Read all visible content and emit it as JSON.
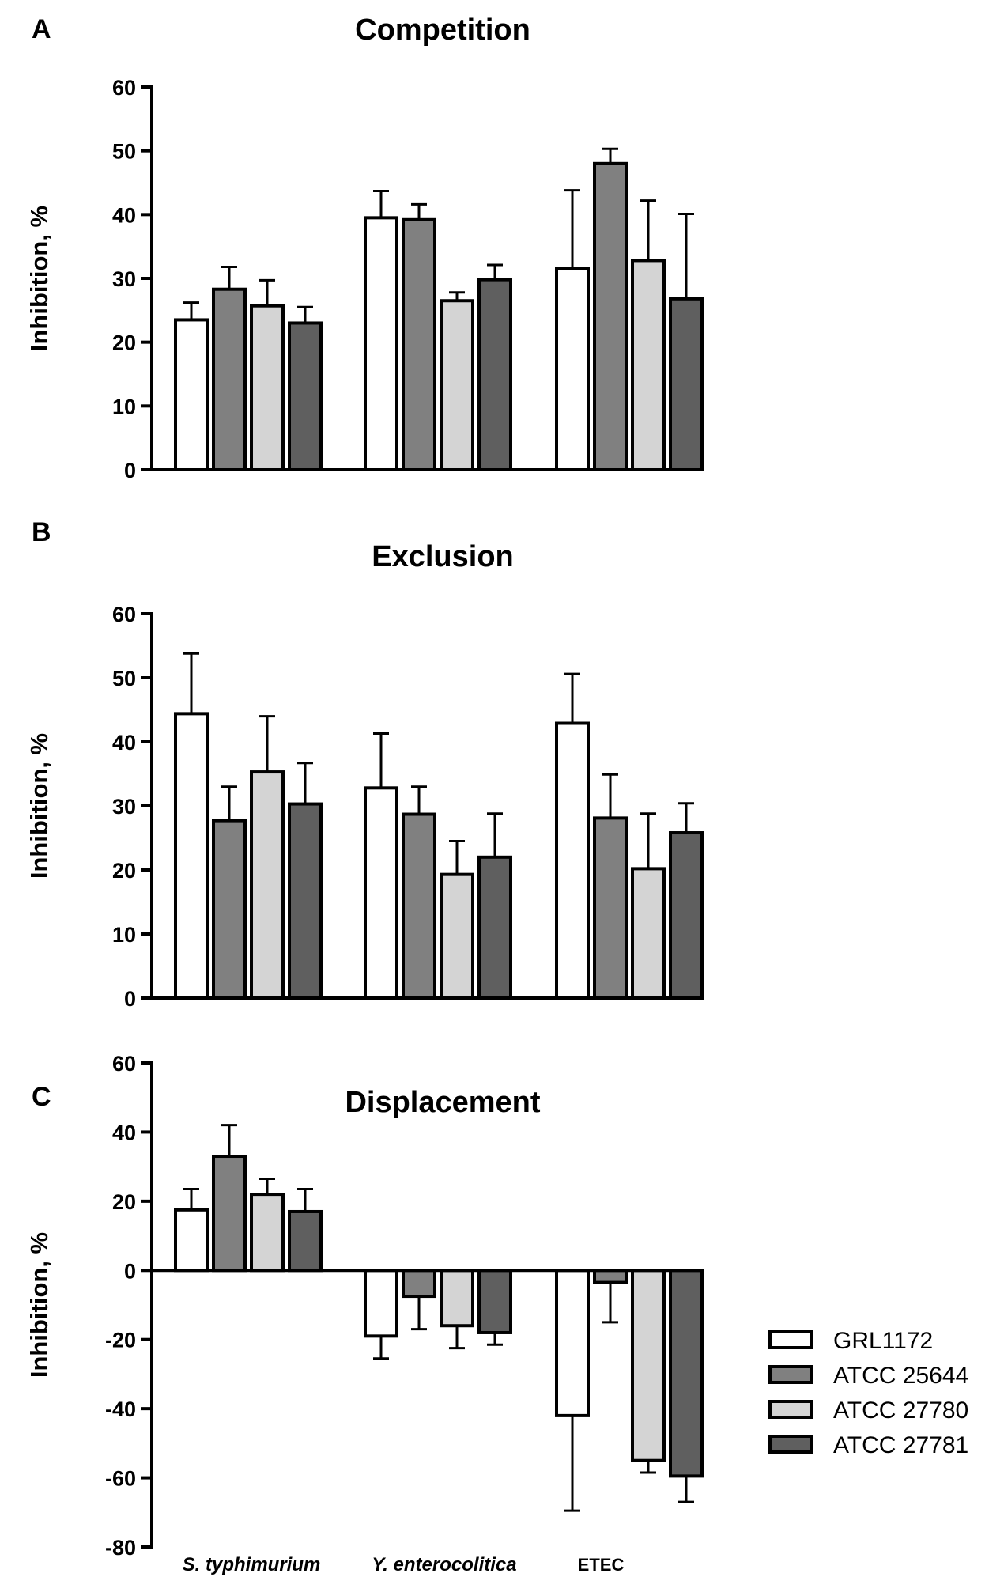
{
  "legend": {
    "series": [
      {
        "name": "GRL1172",
        "color": "#ffffff"
      },
      {
        "name": "ATCC 25644",
        "color": "#808080"
      },
      {
        "name": "ATCC 27780",
        "color": "#d4d4d4"
      },
      {
        "name": "ATCC 27781",
        "color": "#5f5f5f"
      }
    ]
  },
  "group_labels": [
    "S. typhimurium",
    "Y. enterocolitica",
    "ETEC"
  ],
  "chart_data": [
    {
      "panel": "A",
      "type": "bar",
      "title": "Competition",
      "ylabel": "Inhibition, %",
      "ylim": [
        0,
        60
      ],
      "yticks": [
        0,
        10,
        20,
        30,
        40,
        50,
        60
      ],
      "categories": [
        "S. typhimurium",
        "Y. enterocolitica",
        "ETEC"
      ],
      "series": [
        {
          "name": "GRL1172",
          "values": [
            23.5,
            39.5,
            31.5
          ],
          "errors": [
            2.7,
            4.2,
            12.3
          ]
        },
        {
          "name": "ATCC 25644",
          "values": [
            28.3,
            39.2,
            48.0
          ],
          "errors": [
            3.5,
            2.4,
            2.3
          ]
        },
        {
          "name": "ATCC 27780",
          "values": [
            25.7,
            26.5,
            32.8
          ],
          "errors": [
            4.0,
            1.3,
            9.4
          ]
        },
        {
          "name": "ATCC 27781",
          "values": [
            23.0,
            29.8,
            26.8
          ],
          "errors": [
            2.5,
            2.3,
            13.3
          ]
        }
      ]
    },
    {
      "panel": "B",
      "type": "bar",
      "title": "Exclusion",
      "ylabel": "Inhibition, %",
      "ylim": [
        0,
        60
      ],
      "yticks": [
        0,
        10,
        20,
        30,
        40,
        50,
        60
      ],
      "categories": [
        "S. typhimurium",
        "Y. enterocolitica",
        "ETEC"
      ],
      "series": [
        {
          "name": "GRL1172",
          "values": [
            44.4,
            32.8,
            42.9
          ],
          "errors": [
            9.4,
            8.5,
            7.7
          ]
        },
        {
          "name": "ATCC 25644",
          "values": [
            27.7,
            28.7,
            28.1
          ],
          "errors": [
            5.3,
            4.3,
            6.8
          ]
        },
        {
          "name": "ATCC 27780",
          "values": [
            35.3,
            19.3,
            20.2
          ],
          "errors": [
            8.7,
            5.2,
            8.6
          ]
        },
        {
          "name": "ATCC 27781",
          "values": [
            30.3,
            22.0,
            25.8
          ],
          "errors": [
            6.4,
            6.8,
            4.6
          ]
        }
      ]
    },
    {
      "panel": "C",
      "type": "bar",
      "title": "Displacement",
      "ylabel": "Inhibition, %",
      "ylim": [
        -80,
        60
      ],
      "yticks": [
        -80,
        -60,
        -40,
        -20,
        0,
        20,
        40,
        60
      ],
      "categories": [
        "S. typhimurium",
        "Y. enterocolitica",
        "ETEC"
      ],
      "series": [
        {
          "name": "GRL1172",
          "values": [
            17.5,
            -19.0,
            -42.0
          ],
          "errors": [
            6.0,
            6.5,
            27.5
          ]
        },
        {
          "name": "ATCC 25644",
          "values": [
            33.0,
            -7.5,
            -3.5
          ],
          "errors": [
            9.0,
            9.5,
            11.5
          ]
        },
        {
          "name": "ATCC 27780",
          "values": [
            22.0,
            -16.0,
            -55.0
          ],
          "errors": [
            4.5,
            6.5,
            3.5
          ]
        },
        {
          "name": "ATCC 27781",
          "values": [
            17.0,
            -18.0,
            -59.5
          ],
          "errors": [
            6.5,
            3.5,
            7.5
          ]
        }
      ]
    }
  ]
}
